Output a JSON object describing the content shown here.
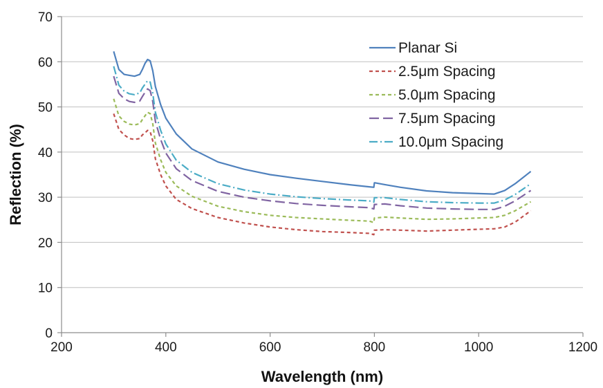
{
  "chart_data": {
    "type": "line",
    "title": "",
    "xlabel": "Wavelength (nm)",
    "ylabel": "Reflection (%)",
    "xlim": [
      200,
      1200
    ],
    "ylim": [
      0,
      70
    ],
    "xticks": [
      200,
      400,
      600,
      800,
      1000,
      1200
    ],
    "yticks": [
      0,
      10,
      20,
      30,
      40,
      50,
      60,
      70
    ],
    "grid": "horizontal",
    "legend_position": "top-right",
    "series": [
      {
        "name": "Planar Si",
        "color": "#4f81bd",
        "style": "solid",
        "x": [
          300,
          310,
          320,
          330,
          340,
          350,
          355,
          360,
          365,
          370,
          375,
          380,
          390,
          400,
          420,
          450,
          500,
          550,
          600,
          650,
          700,
          750,
          790,
          799,
          800,
          801,
          820,
          850,
          900,
          950,
          1000,
          1030,
          1050,
          1070,
          1100
        ],
        "y": [
          62.3,
          58.3,
          57.2,
          57.0,
          56.8,
          57.2,
          58.3,
          59.6,
          60.5,
          60.2,
          58.0,
          54.5,
          50.5,
          47.5,
          44.0,
          40.7,
          37.8,
          36.2,
          35.0,
          34.2,
          33.5,
          32.8,
          32.3,
          32.2,
          33.2,
          33.2,
          32.8,
          32.2,
          31.4,
          31.0,
          30.8,
          30.7,
          31.5,
          33.0,
          35.7
        ]
      },
      {
        "name": "2.5μm Spacing",
        "color": "#c0504d",
        "style": "dashed",
        "x": [
          300,
          310,
          320,
          330,
          340,
          350,
          355,
          360,
          365,
          370,
          375,
          380,
          390,
          400,
          420,
          450,
          500,
          550,
          600,
          650,
          700,
          750,
          790,
          799,
          800,
          801,
          820,
          850,
          900,
          950,
          1000,
          1030,
          1050,
          1070,
          1100
        ],
        "y": [
          48.5,
          45.0,
          43.8,
          43.0,
          42.8,
          43.0,
          43.8,
          44.2,
          44.8,
          44.5,
          42.5,
          38.5,
          35.0,
          32.5,
          29.5,
          27.5,
          25.5,
          24.3,
          23.4,
          22.8,
          22.4,
          22.2,
          22.0,
          21.7,
          22.7,
          22.7,
          22.8,
          22.7,
          22.5,
          22.7,
          22.9,
          23.0,
          23.4,
          24.5,
          27.0
        ]
      },
      {
        "name": "5.0μm Spacing",
        "color": "#9bbb59",
        "style": "dashed",
        "x": [
          300,
          310,
          320,
          330,
          340,
          350,
          355,
          360,
          365,
          370,
          375,
          380,
          390,
          400,
          420,
          450,
          500,
          550,
          600,
          650,
          700,
          750,
          790,
          799,
          800,
          801,
          820,
          850,
          900,
          950,
          1000,
          1030,
          1050,
          1070,
          1100
        ],
        "y": [
          51.8,
          48.0,
          46.8,
          46.2,
          46.0,
          46.3,
          47.2,
          48.0,
          48.8,
          48.5,
          46.3,
          42.0,
          38.3,
          35.5,
          32.5,
          30.2,
          28.0,
          26.8,
          26.0,
          25.5,
          25.2,
          24.9,
          24.7,
          24.4,
          25.4,
          25.4,
          25.6,
          25.4,
          25.1,
          25.2,
          25.4,
          25.5,
          26.0,
          27.0,
          29.0
        ]
      },
      {
        "name": "7.5μm Spacing",
        "color": "#8064a2",
        "style": "longdash",
        "x": [
          300,
          310,
          320,
          330,
          340,
          350,
          355,
          360,
          365,
          370,
          375,
          380,
          390,
          400,
          420,
          450,
          500,
          550,
          600,
          650,
          700,
          750,
          790,
          799,
          800,
          801,
          820,
          850,
          900,
          950,
          1000,
          1030,
          1050,
          1070,
          1100
        ],
        "y": [
          56.8,
          53.0,
          51.8,
          51.2,
          51.0,
          51.3,
          52.3,
          53.2,
          54.0,
          53.6,
          51.2,
          46.8,
          42.8,
          39.8,
          36.3,
          33.7,
          31.3,
          30.0,
          29.2,
          28.6,
          28.2,
          27.9,
          27.7,
          27.4,
          28.4,
          28.4,
          28.5,
          28.1,
          27.6,
          27.4,
          27.3,
          27.3,
          28.0,
          29.2,
          31.5
        ]
      },
      {
        "name": "10.0μm Spacing",
        "color": "#4bacc6",
        "style": "dashdot",
        "x": [
          300,
          310,
          320,
          330,
          340,
          350,
          355,
          360,
          365,
          370,
          375,
          380,
          390,
          400,
          420,
          450,
          500,
          550,
          600,
          650,
          700,
          750,
          790,
          799,
          800,
          801,
          820,
          850,
          900,
          950,
          1000,
          1030,
          1050,
          1070,
          1100
        ],
        "y": [
          59.0,
          54.8,
          53.5,
          52.9,
          52.7,
          53.1,
          54.2,
          55.0,
          55.8,
          55.5,
          53.0,
          48.8,
          44.8,
          41.8,
          38.2,
          35.5,
          33.0,
          31.6,
          30.7,
          30.1,
          29.7,
          29.4,
          29.2,
          28.9,
          29.9,
          29.9,
          29.9,
          29.5,
          29.0,
          28.8,
          28.7,
          28.7,
          29.4,
          30.6,
          33.0
        ]
      }
    ]
  }
}
